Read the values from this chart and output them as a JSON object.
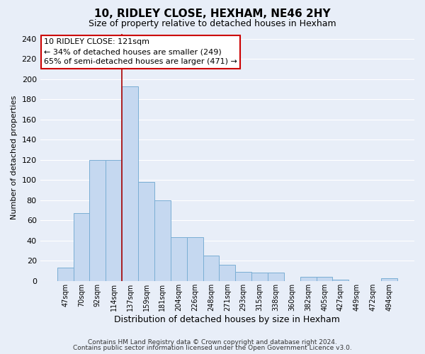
{
  "title": "10, RIDLEY CLOSE, HEXHAM, NE46 2HY",
  "subtitle": "Size of property relative to detached houses in Hexham",
  "xlabel": "Distribution of detached houses by size in Hexham",
  "ylabel": "Number of detached properties",
  "bar_labels": [
    "47sqm",
    "70sqm",
    "92sqm",
    "114sqm",
    "137sqm",
    "159sqm",
    "181sqm",
    "204sqm",
    "226sqm",
    "248sqm",
    "271sqm",
    "293sqm",
    "315sqm",
    "338sqm",
    "360sqm",
    "382sqm",
    "405sqm",
    "427sqm",
    "449sqm",
    "472sqm",
    "494sqm"
  ],
  "bar_values": [
    13,
    67,
    120,
    120,
    193,
    98,
    80,
    43,
    43,
    25,
    16,
    9,
    8,
    8,
    0,
    4,
    4,
    1,
    0,
    0,
    3
  ],
  "bar_color": "#c5d8f0",
  "bar_edge_color": "#7aaed4",
  "vline_color": "#aa0000",
  "vline_x": 3.5,
  "ylim": [
    0,
    245
  ],
  "yticks": [
    0,
    20,
    40,
    60,
    80,
    100,
    120,
    140,
    160,
    180,
    200,
    220,
    240
  ],
  "annotation_title": "10 RIDLEY CLOSE: 121sqm",
  "annotation_line1": "← 34% of detached houses are smaller (249)",
  "annotation_line2": "65% of semi-detached houses are larger (471) →",
  "annotation_box_facecolor": "#ffffff",
  "annotation_box_edgecolor": "#cc0000",
  "footer1": "Contains HM Land Registry data © Crown copyright and database right 2024.",
  "footer2": "Contains public sector information licensed under the Open Government Licence v3.0.",
  "background_color": "#e8eef8",
  "plot_bg_color": "#e8eef8",
  "grid_color": "#ffffff",
  "title_fontsize": 11,
  "subtitle_fontsize": 9,
  "ylabel_fontsize": 8,
  "xlabel_fontsize": 9
}
